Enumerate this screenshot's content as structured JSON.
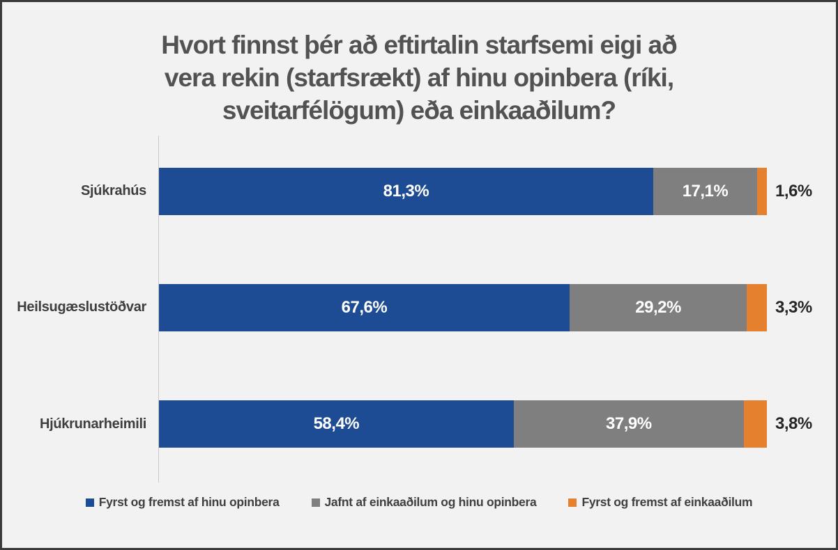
{
  "frame": {
    "background_color": "#f2f2f2",
    "border_color": "#3a3a3a"
  },
  "title": "Hvort finnst þér að eftirtalin starfsemi eigi að vera rekin (starfsrækt) af hinu opinbera (ríki, sveitarfélögum) eða einkaaðilum?",
  "title_lines": [
    "Hvort finnst þér að eftirtalin starfsemi eigi að",
    "vera rekin (starfsrækt) af hinu opinbera (ríki,",
    "sveitarfélögum) eða einkaaðilum?"
  ],
  "chart_data": {
    "type": "bar",
    "orientation": "horizontal",
    "stacked": true,
    "title": "Hvort finnst þér að eftirtalin starfsemi eigi að vera rekin (starfsrækt) af hinu opinbera (ríki, sveitarfélögum) eða einkaaðilum?",
    "categories": [
      "Sjúkrahús",
      "Heilsugæslustöðvar",
      "Hjúkrunarheimili"
    ],
    "series": [
      {
        "name": "Fyrst og fremst af hinu opinbera",
        "color": "#1e4c94",
        "values": [
          81.3,
          67.6,
          58.4
        ],
        "labels": [
          "81,3%",
          "67,6%",
          "58,4%"
        ],
        "label_position": "inside"
      },
      {
        "name": "Jafnt af einkaaðilum og hinu opinbera",
        "color": "#7f7f7f",
        "values": [
          17.1,
          29.2,
          37.9
        ],
        "labels": [
          "17,1%",
          "29,2%",
          "37,9%"
        ],
        "label_position": "inside"
      },
      {
        "name": "Fyrst og fremst af einkaaðilum",
        "color": "#e5802e",
        "values": [
          1.6,
          3.3,
          3.8
        ],
        "labels": [
          "1,6%",
          "3,3%",
          "3,8%"
        ],
        "label_position": "outside-end"
      }
    ],
    "xlim": [
      0,
      100
    ],
    "grid": false,
    "axis_line_color": "#c9c9c9",
    "legend_position": "bottom",
    "value_label_colors": {
      "inside": "#ffffff",
      "outside": "#262626"
    }
  }
}
